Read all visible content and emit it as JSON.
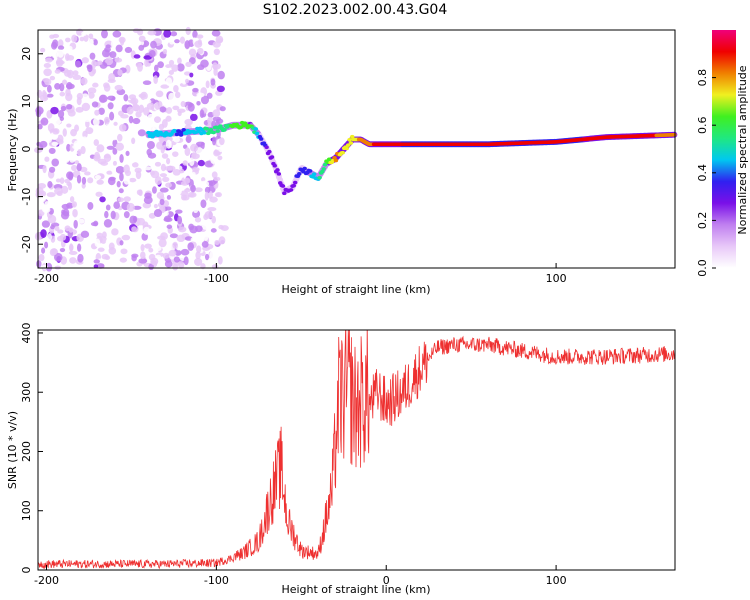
{
  "figure_title": "S102.2023.002.00.43.G04",
  "chart_data": [
    {
      "type": "heatmap",
      "title": "",
      "xlabel": "Height of straight line (km)",
      "ylabel": "Frequency (Hz)",
      "xlim": [
        -205,
        170
      ],
      "ylim": [
        -25,
        25
      ],
      "xticks": [
        -200,
        -100,
        100
      ],
      "yticks": [
        -20,
        -10,
        0,
        10,
        20
      ],
      "colorbar": {
        "label": "Normalized spectral amplitude",
        "range": [
          0,
          1
        ],
        "ticks": [
          0.0,
          0.2,
          0.4,
          0.6,
          0.8
        ],
        "colors": [
          "#ffffff",
          "#e8c8f8",
          "#c080f0",
          "#7a10e8",
          "#3020f0",
          "#00c8f0",
          "#20e880",
          "#40f020",
          "#f0f020",
          "#f08000",
          "#f00000",
          "#f0007a"
        ]
      },
      "ridge": {
        "x": [
          -140,
          -120,
          -100,
          -90,
          -80,
          -75,
          -70,
          -65,
          -60,
          -55,
          -50,
          -45,
          -40,
          -35,
          -30,
          -25,
          -20,
          -15,
          -10,
          0,
          20,
          60,
          100,
          130,
          170
        ],
        "y": [
          3,
          3.5,
          4,
          5,
          5,
          3,
          0,
          -4,
          -9,
          -8,
          -4,
          -5,
          -6,
          -3,
          -2,
          0,
          2,
          2,
          1,
          1,
          1,
          1,
          1.5,
          2.5,
          3
        ],
        "amplitude": [
          0.45,
          0.4,
          0.55,
          0.6,
          0.65,
          0.4,
          0.3,
          0.3,
          0.3,
          0.3,
          0.35,
          0.4,
          0.5,
          0.6,
          0.8,
          0.75,
          0.7,
          0.8,
          0.85,
          0.9,
          0.92,
          0.95,
          0.92,
          0.9,
          0.85
        ]
      }
    },
    {
      "type": "line",
      "title": "",
      "xlabel": "Height of straight line (km)",
      "ylabel": "SNR (10 * v/v)",
      "xlim": [
        -205,
        170
      ],
      "ylim": [
        0,
        405
      ],
      "xticks": [
        -200,
        -100,
        0,
        100
      ],
      "yticks": [
        0,
        100,
        200,
        300,
        400
      ],
      "color": "#ee3030",
      "envelope": {
        "x": [
          -205,
          -130,
          -100,
          -85,
          -75,
          -68,
          -62,
          -58,
          -50,
          -40,
          -32,
          -28,
          -22,
          -18,
          -12,
          -5,
          0,
          10,
          20,
          30,
          40,
          60,
          80,
          100,
          130,
          170
        ],
        "y": [
          10,
          10,
          12,
          25,
          45,
          110,
          160,
          75,
          30,
          25,
          120,
          260,
          280,
          250,
          270,
          300,
          280,
          300,
          340,
          375,
          380,
          380,
          370,
          360,
          360,
          365
        ]
      }
    }
  ]
}
